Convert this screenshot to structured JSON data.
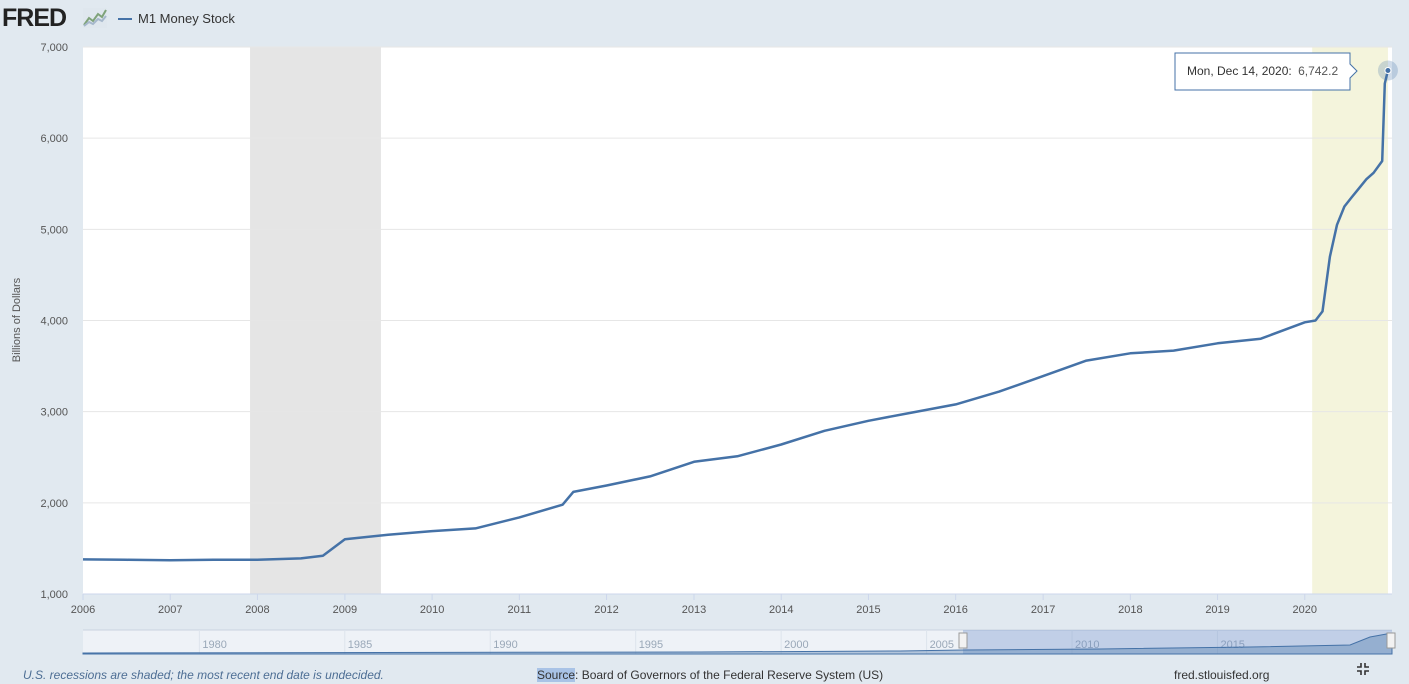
{
  "app": {
    "logo_text": "FRED",
    "logo_icon": "chart-line-icon"
  },
  "legend": {
    "label": "M1 Money Stock",
    "color": "#4572a7"
  },
  "tooltip": {
    "date": "Mon, Dec 14, 2020:",
    "value": "6,742.2"
  },
  "footer": {
    "recession_note": "U.S. recessions are shaded; the most recent end date is undecided.",
    "source_label": "Source",
    "source_text": ": Board of Governors of the Federal Reserve System (US)",
    "site": "fred.stlouisfed.org",
    "fullscreen_icon": "fullscreen-icon"
  },
  "navigator": {
    "tick_labels": [
      "1980",
      "1985",
      "1990",
      "1995",
      "2000",
      "2005",
      "2010",
      "2015"
    ]
  },
  "chart_data": {
    "type": "line",
    "title": "",
    "xlabel": "",
    "ylabel": "Billions of Dollars",
    "xlim": [
      "2006-01-01",
      "2020-12-31"
    ],
    "ylim": [
      1000,
      7000
    ],
    "y_ticks": [
      "1,000",
      "2,000",
      "3,000",
      "4,000",
      "5,000",
      "6,000",
      "7,000"
    ],
    "x_ticks": [
      "2006",
      "2007",
      "2008",
      "2009",
      "2010",
      "2011",
      "2012",
      "2013",
      "2014",
      "2015",
      "2016",
      "2017",
      "2018",
      "2019",
      "2020"
    ],
    "grid": true,
    "recessions": [
      {
        "start": "2007-12-01",
        "end": "2009-06-01",
        "color": "#e5e5e5"
      },
      {
        "start": "2020-02-01",
        "end": "2020-12-14",
        "color": "#f4f4dc"
      }
    ],
    "series": [
      {
        "name": "M1 Money Stock",
        "color": "#4572a7",
        "x": [
          "2006-01-01",
          "2006-07-01",
          "2007-01-01",
          "2007-07-01",
          "2008-01-01",
          "2008-07-01",
          "2008-10-01",
          "2009-01-01",
          "2009-07-01",
          "2010-01-01",
          "2010-07-01",
          "2011-01-01",
          "2011-07-01",
          "2011-08-15",
          "2012-01-01",
          "2012-07-01",
          "2013-01-01",
          "2013-07-01",
          "2014-01-01",
          "2014-07-01",
          "2015-01-01",
          "2015-07-01",
          "2016-01-01",
          "2016-07-01",
          "2017-01-01",
          "2017-07-01",
          "2018-01-01",
          "2018-07-01",
          "2019-01-01",
          "2019-07-01",
          "2020-01-01",
          "2020-02-15",
          "2020-03-15",
          "2020-04-15",
          "2020-05-15",
          "2020-06-15",
          "2020-07-15",
          "2020-08-15",
          "2020-09-15",
          "2020-10-15",
          "2020-11-20",
          "2020-12-01",
          "2020-12-14"
        ],
        "values": [
          1380,
          1375,
          1370,
          1375,
          1375,
          1390,
          1420,
          1600,
          1650,
          1690,
          1720,
          1840,
          1980,
          2120,
          2190,
          2290,
          2450,
          2510,
          2640,
          2790,
          2900,
          2990,
          3080,
          3220,
          3390,
          3560,
          3640,
          3670,
          3750,
          3800,
          3980,
          4000,
          4100,
          4700,
          5050,
          5250,
          5350,
          5450,
          5550,
          5620,
          5750,
          6600,
          6742.2
        ]
      }
    ]
  }
}
